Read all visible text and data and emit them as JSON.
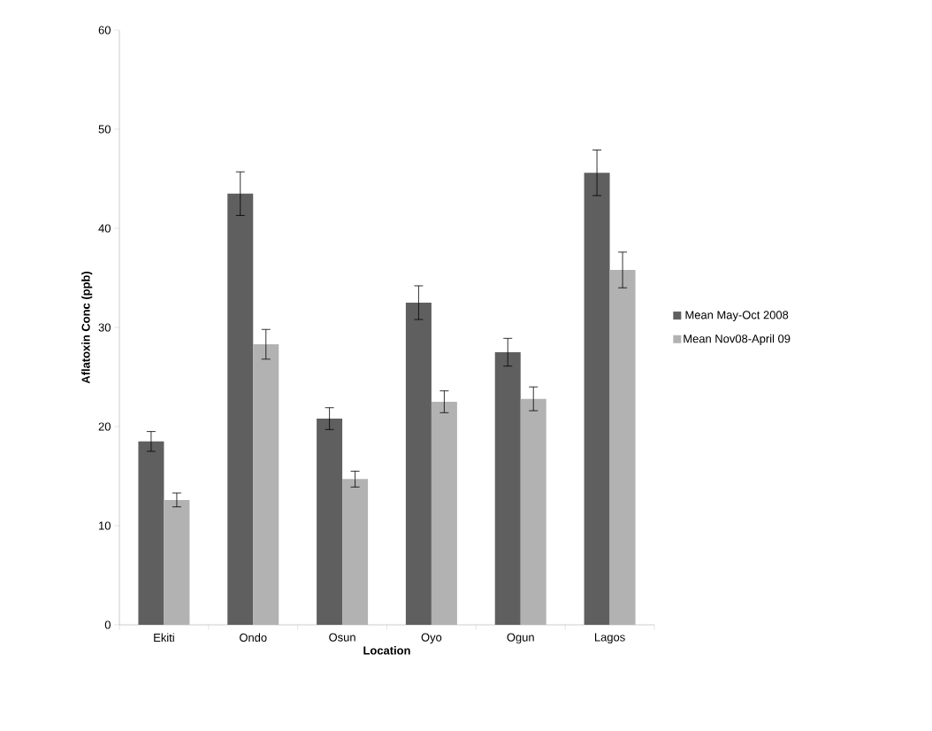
{
  "chart_data": {
    "type": "bar",
    "xlabel": "Location",
    "ylabel": "Aflatoxin Conc (ppb)",
    "categories": [
      "Ekiti",
      "Ondo",
      "Osun",
      "Oyo",
      "Ogun",
      "Lagos"
    ],
    "series": [
      {
        "name": "Mean May-Oct 2008",
        "color": "#5f5f5f",
        "values": [
          18.5,
          43.5,
          20.8,
          32.5,
          27.5,
          45.6
        ],
        "errors": [
          1.0,
          2.2,
          1.1,
          1.7,
          1.4,
          2.3
        ]
      },
      {
        "name": "Mean Nov08-April 09",
        "color": "#b2b2b2",
        "values": [
          12.6,
          28.3,
          14.7,
          22.5,
          22.8,
          35.8
        ],
        "errors": [
          0.7,
          1.5,
          0.8,
          1.1,
          1.2,
          1.8
        ]
      }
    ],
    "ylim": [
      0,
      60
    ],
    "yticks": [
      0,
      10,
      20,
      30,
      40,
      50,
      60
    ],
    "legend": "right",
    "grid": false
  }
}
